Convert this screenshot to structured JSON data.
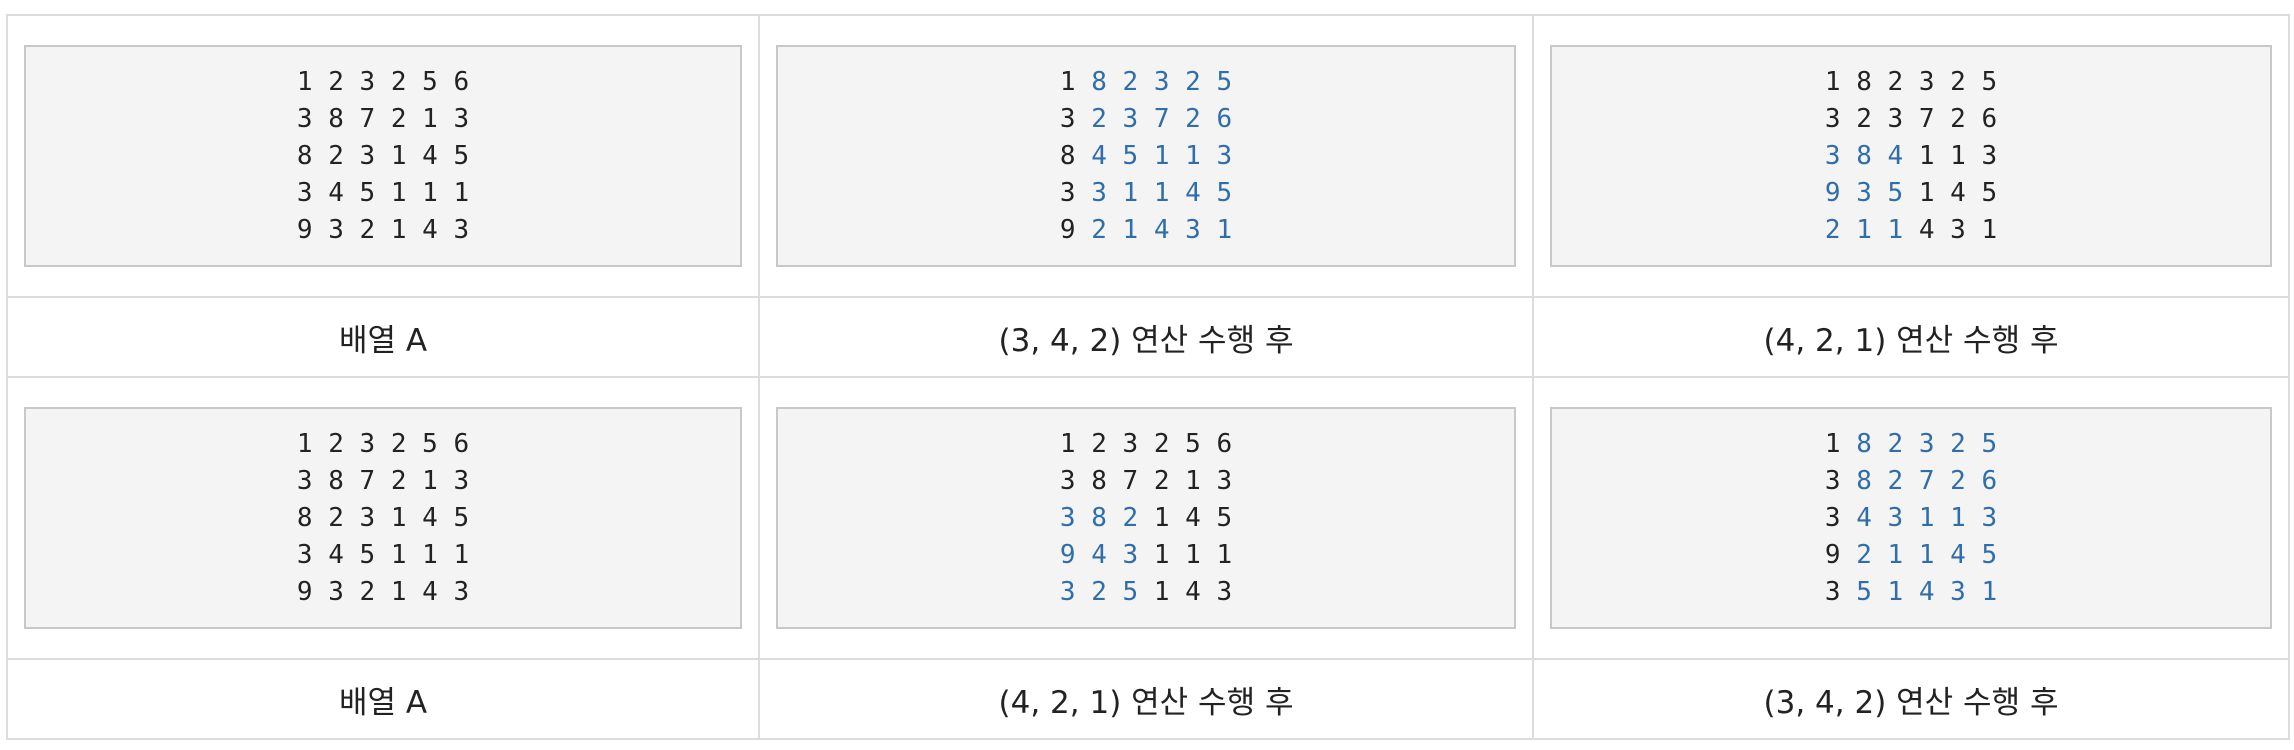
{
  "highlight_color": "#2f6eaa",
  "rows": [
    {
      "cells": [
        {
          "matrix": [
            [
              1,
              2,
              3,
              2,
              5,
              6
            ],
            [
              3,
              8,
              7,
              2,
              1,
              3
            ],
            [
              8,
              2,
              3,
              1,
              4,
              5
            ],
            [
              3,
              4,
              5,
              1,
              1,
              1
            ],
            [
              9,
              3,
              2,
              1,
              4,
              3
            ]
          ],
          "highlight": [
            [],
            [],
            [],
            [],
            []
          ],
          "caption": "배열 A"
        },
        {
          "matrix": [
            [
              1,
              8,
              2,
              3,
              2,
              5
            ],
            [
              3,
              2,
              3,
              7,
              2,
              6
            ],
            [
              8,
              4,
              5,
              1,
              1,
              3
            ],
            [
              3,
              3,
              1,
              1,
              4,
              5
            ],
            [
              9,
              2,
              1,
              4,
              3,
              1
            ]
          ],
          "highlight": [
            [
              1,
              2,
              3,
              4,
              5
            ],
            [
              1,
              2,
              3,
              4,
              5
            ],
            [
              1,
              2,
              3,
              4,
              5
            ],
            [
              1,
              2,
              3,
              4,
              5
            ],
            [
              1,
              2,
              3,
              4,
              5
            ]
          ],
          "caption": "(3, 4, 2) 연산 수행 후"
        },
        {
          "matrix": [
            [
              1,
              8,
              2,
              3,
              2,
              5
            ],
            [
              3,
              2,
              3,
              7,
              2,
              6
            ],
            [
              3,
              8,
              4,
              1,
              1,
              3
            ],
            [
              9,
              3,
              5,
              1,
              4,
              5
            ],
            [
              2,
              1,
              1,
              4,
              3,
              1
            ]
          ],
          "highlight": [
            [],
            [],
            [
              0,
              1,
              2
            ],
            [
              0,
              1,
              2
            ],
            [
              0,
              1,
              2
            ]
          ],
          "caption": "(4, 2, 1) 연산 수행 후"
        }
      ]
    },
    {
      "cells": [
        {
          "matrix": [
            [
              1,
              2,
              3,
              2,
              5,
              6
            ],
            [
              3,
              8,
              7,
              2,
              1,
              3
            ],
            [
              8,
              2,
              3,
              1,
              4,
              5
            ],
            [
              3,
              4,
              5,
              1,
              1,
              1
            ],
            [
              9,
              3,
              2,
              1,
              4,
              3
            ]
          ],
          "highlight": [
            [],
            [],
            [],
            [],
            []
          ],
          "caption": "배열 A"
        },
        {
          "matrix": [
            [
              1,
              2,
              3,
              2,
              5,
              6
            ],
            [
              3,
              8,
              7,
              2,
              1,
              3
            ],
            [
              3,
              8,
              2,
              1,
              4,
              5
            ],
            [
              9,
              4,
              3,
              1,
              1,
              1
            ],
            [
              3,
              2,
              5,
              1,
              4,
              3
            ]
          ],
          "highlight": [
            [],
            [],
            [
              0,
              1,
              2
            ],
            [
              0,
              1,
              2
            ],
            [
              0,
              1,
              2
            ]
          ],
          "caption": "(4, 2, 1) 연산 수행 후"
        },
        {
          "matrix": [
            [
              1,
              8,
              2,
              3,
              2,
              5
            ],
            [
              3,
              8,
              2,
              7,
              2,
              6
            ],
            [
              3,
              4,
              3,
              1,
              1,
              3
            ],
            [
              9,
              2,
              1,
              1,
              4,
              5
            ],
            [
              3,
              5,
              1,
              4,
              3,
              1
            ]
          ],
          "highlight": [
            [
              1,
              2,
              3,
              4,
              5
            ],
            [
              1,
              2,
              3,
              4,
              5
            ],
            [
              1,
              2,
              3,
              4,
              5
            ],
            [
              1,
              2,
              3,
              4,
              5
            ],
            [
              1,
              2,
              3,
              4,
              5
            ]
          ],
          "caption": "(3, 4, 2) 연산 수행 후"
        }
      ]
    }
  ]
}
